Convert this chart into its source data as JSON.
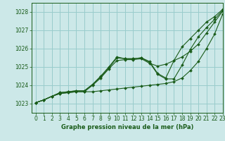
{
  "title": "Graphe pression niveau de la mer (hPa)",
  "bg_color": "#cce8e8",
  "grid_color": "#99cccc",
  "line_color": "#1a5c1a",
  "marker_color": "#1a5c1a",
  "xlim": [
    -0.5,
    23
  ],
  "ylim": [
    1022.5,
    1028.5
  ],
  "yticks": [
    1023,
    1024,
    1025,
    1026,
    1027,
    1028
  ],
  "xticks": [
    0,
    1,
    2,
    3,
    4,
    5,
    6,
    7,
    8,
    9,
    10,
    11,
    12,
    13,
    14,
    15,
    16,
    17,
    18,
    19,
    20,
    21,
    22,
    23
  ],
  "lines": [
    {
      "x": [
        0,
        1,
        2,
        3,
        4,
        5,
        6,
        7,
        8,
        9,
        10,
        11,
        12,
        13,
        14,
        15,
        16,
        17,
        18,
        19,
        20,
        21,
        22,
        23
      ],
      "y": [
        1023.05,
        1023.2,
        1023.4,
        1023.55,
        1023.6,
        1023.65,
        1023.65,
        1023.65,
        1023.7,
        1023.75,
        1023.8,
        1023.85,
        1023.9,
        1023.95,
        1024.0,
        1024.05,
        1024.1,
        1024.2,
        1024.4,
        1024.8,
        1025.3,
        1026.0,
        1026.8,
        1027.9
      ]
    },
    {
      "x": [
        0,
        1,
        2,
        3,
        4,
        5,
        6,
        7,
        8,
        9,
        10,
        11,
        12,
        13,
        14,
        15,
        16,
        17,
        18,
        19,
        20,
        21,
        22,
        23
      ],
      "y": [
        1023.05,
        1023.2,
        1023.4,
        1023.55,
        1023.6,
        1023.65,
        1023.65,
        1024.0,
        1024.4,
        1024.9,
        1025.35,
        1025.4,
        1025.4,
        1025.45,
        1025.2,
        1025.05,
        1025.15,
        1025.35,
        1025.55,
        1025.85,
        1026.25,
        1026.85,
        1027.45,
        1028.05
      ]
    },
    {
      "x": [
        0,
        1,
        2,
        3,
        4,
        5,
        6,
        7,
        8,
        9,
        10,
        11,
        12,
        13,
        14,
        15,
        16,
        17,
        18,
        19,
        20,
        21,
        22,
        23
      ],
      "y": [
        1023.05,
        1023.2,
        1023.4,
        1023.6,
        1023.65,
        1023.7,
        1023.7,
        1024.05,
        1024.45,
        1024.95,
        1025.5,
        1025.45,
        1025.45,
        1025.5,
        1025.25,
        1024.6,
        1024.35,
        1024.35,
        1025.1,
        1025.95,
        1026.65,
        1027.15,
        1027.6,
        1028.1
      ]
    },
    {
      "x": [
        0,
        1,
        2,
        3,
        4,
        5,
        6,
        7,
        8,
        9,
        10,
        11,
        12,
        13,
        14,
        15,
        16,
        17,
        18,
        19,
        20,
        21,
        22,
        23
      ],
      "y": [
        1023.05,
        1023.2,
        1023.4,
        1023.6,
        1023.65,
        1023.7,
        1023.7,
        1024.05,
        1024.5,
        1025.0,
        1025.55,
        1025.45,
        1025.45,
        1025.5,
        1025.3,
        1024.65,
        1024.4,
        1025.35,
        1026.1,
        1026.55,
        1027.0,
        1027.45,
        1027.75,
        1028.15
      ]
    }
  ]
}
